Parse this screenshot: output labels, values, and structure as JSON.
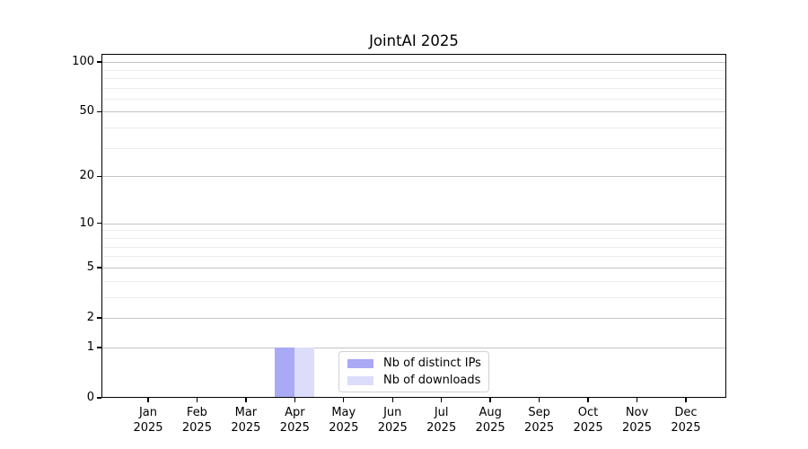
{
  "chart_data": {
    "type": "bar",
    "title": "JointAI 2025",
    "xlabel": "",
    "ylabel": "",
    "categories": [
      "Jan 2025",
      "Feb 2025",
      "Mar 2025",
      "Apr 2025",
      "May 2025",
      "Jun 2025",
      "Jul 2025",
      "Aug 2025",
      "Sep 2025",
      "Oct 2025",
      "Nov 2025",
      "Dec 2025"
    ],
    "series": [
      {
        "name": "Nb of distinct IPs",
        "color": "#a9a9f5",
        "values": [
          0,
          0,
          0,
          1,
          0,
          0,
          0,
          0,
          0,
          0,
          0,
          0
        ]
      },
      {
        "name": "Nb of downloads",
        "color": "#dcdcfb",
        "values": [
          0,
          0,
          0,
          1,
          0,
          0,
          0,
          0,
          0,
          0,
          0,
          0
        ]
      }
    ],
    "yscale": "log1p",
    "ylim": [
      0,
      112
    ],
    "yticks_major": [
      0,
      1,
      2,
      5,
      10,
      20,
      50,
      100
    ],
    "yticks_minor": [
      3,
      4,
      6,
      7,
      8,
      9,
      30,
      40,
      60,
      70,
      80,
      90
    ],
    "grid": true,
    "legend_position": "lower center"
  },
  "style": {
    "background": "#ffffff",
    "grid_major_color": "#c3c3c3",
    "grid_minor_color": "#ececec",
    "spine_color": "#000000",
    "legend_border_color": "#d2d2d2"
  }
}
